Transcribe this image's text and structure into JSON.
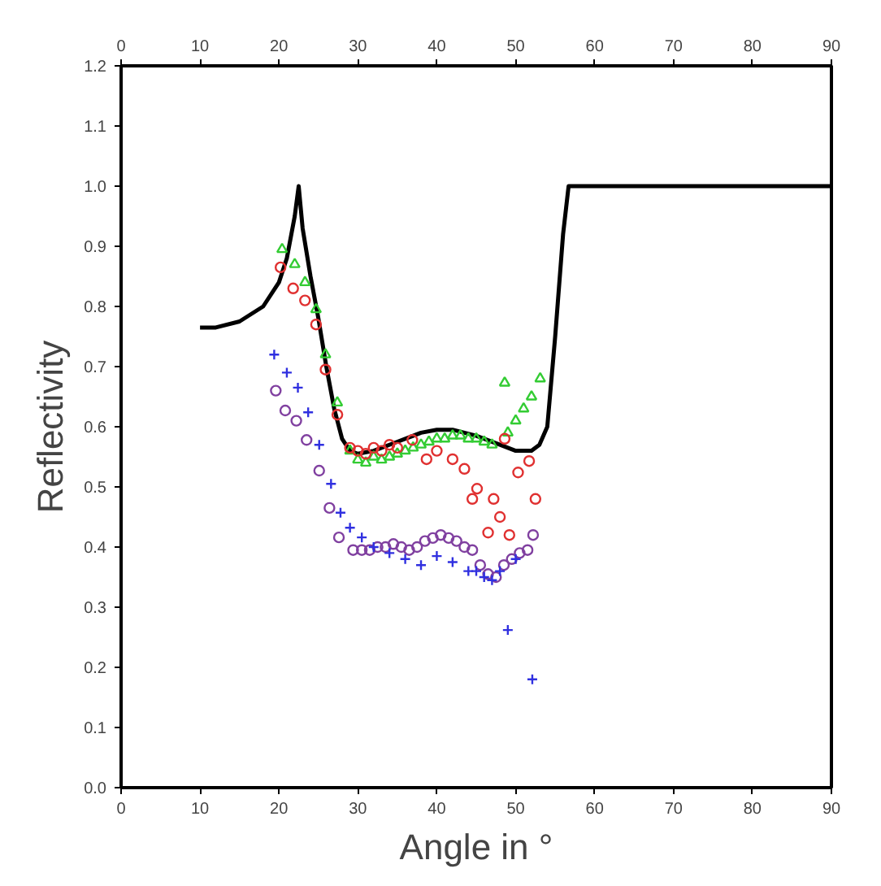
{
  "chart_data": {
    "type": "scatter",
    "xlabel": "Angle in °",
    "ylabel": "Reflectivity",
    "xlim": [
      0,
      90
    ],
    "ylim": [
      0,
      1.2
    ],
    "xticks": [
      0,
      10,
      20,
      30,
      40,
      50,
      60,
      70,
      80,
      90
    ],
    "x2lim": [
      0,
      90
    ],
    "x2ticks": [
      0,
      10,
      20,
      30,
      40,
      50,
      60,
      70,
      80,
      90
    ],
    "yticks": [
      {
        "value": 0,
        "label": "0.0"
      },
      0.1,
      0.2,
      0.3,
      0.4,
      0.5,
      0.6,
      0.7,
      0.8,
      0.9,
      {
        "value": 1,
        "label": "1.0"
      },
      1.1,
      1.2
    ],
    "grid": false,
    "series": [
      {
        "type": "line",
        "color": "#000000",
        "marker": "none",
        "line_style": "solid",
        "x": [
          10,
          12,
          15,
          18,
          20,
          21,
          22,
          22.5,
          23,
          24,
          25,
          26,
          27,
          28,
          29,
          30,
          32,
          35,
          38,
          40,
          42,
          45,
          48,
          50,
          52,
          53,
          54,
          55,
          56,
          56.7,
          90
        ],
        "values": [
          0.765,
          0.765,
          0.775,
          0.8,
          0.84,
          0.88,
          0.95,
          1.0,
          0.93,
          0.85,
          0.78,
          0.7,
          0.63,
          0.58,
          0.56,
          0.555,
          0.56,
          0.575,
          0.59,
          0.595,
          0.595,
          0.585,
          0.57,
          0.56,
          0.56,
          0.57,
          0.6,
          0.75,
          0.92,
          1.0,
          1.0
        ]
      },
      {
        "color": "#33cc33",
        "marker": "triangle",
        "x": [
          20.4,
          22.0,
          23.3,
          24.7,
          25.9,
          27.4,
          29,
          30,
          31,
          32,
          33,
          34,
          35,
          36,
          37,
          38,
          39,
          40,
          41,
          42,
          43,
          44,
          45,
          46,
          47,
          48.6,
          49,
          50,
          51,
          52,
          53.1
        ],
        "values": [
          0.895,
          0.87,
          0.84,
          0.795,
          0.72,
          0.64,
          0.56,
          0.545,
          0.54,
          0.55,
          0.545,
          0.55,
          0.555,
          0.56,
          0.565,
          0.57,
          0.575,
          0.58,
          0.58,
          0.585,
          0.585,
          0.58,
          0.58,
          0.575,
          0.57,
          0.673,
          0.59,
          0.61,
          0.63,
          0.65,
          0.68
        ]
      },
      {
        "color": "#e03030",
        "marker": "circle",
        "x": [
          20.2,
          21.8,
          23.3,
          24.7,
          25.9,
          27.4,
          29,
          30,
          31,
          32,
          33,
          34,
          35,
          36.9,
          38.7,
          40,
          42,
          43.5,
          44.5,
          45.1,
          46.5,
          47.2,
          48,
          48.6,
          49.2,
          50.3,
          51.7,
          52.5
        ],
        "values": [
          0.865,
          0.83,
          0.81,
          0.77,
          0.695,
          0.62,
          0.565,
          0.56,
          0.555,
          0.565,
          0.56,
          0.57,
          0.565,
          0.578,
          0.546,
          0.56,
          0.546,
          0.53,
          0.48,
          0.497,
          0.424,
          0.48,
          0.45,
          0.58,
          0.42,
          0.524,
          0.543,
          0.48
        ]
      },
      {
        "color": "#8040a0",
        "marker": "circle",
        "x": [
          19.6,
          20.8,
          22.2,
          23.5,
          25.1,
          26.4,
          27.6,
          29.4,
          30.5,
          31.5,
          32.5,
          33.5,
          34.5,
          35.5,
          36.5,
          37.5,
          38.5,
          39.5,
          40.5,
          41.5,
          42.5,
          43.5,
          44.5,
          45.5,
          46.5,
          47.5,
          48.5,
          49.5,
          50.5,
          51.5,
          52.2
        ],
        "values": [
          0.66,
          0.627,
          0.61,
          0.578,
          0.527,
          0.465,
          0.416,
          0.395,
          0.395,
          0.395,
          0.4,
          0.4,
          0.405,
          0.4,
          0.395,
          0.4,
          0.41,
          0.415,
          0.42,
          0.415,
          0.41,
          0.4,
          0.395,
          0.37,
          0.355,
          0.35,
          0.37,
          0.38,
          0.39,
          0.395,
          0.42
        ]
      },
      {
        "color": "#3030e0",
        "marker": "cross",
        "x": [
          19.4,
          21,
          22.4,
          23.7,
          25.1,
          26.6,
          27.8,
          29,
          30.5,
          32,
          34,
          36,
          38,
          40,
          42,
          44,
          45,
          46,
          47,
          48,
          49,
          50,
          52.1
        ],
        "values": [
          0.72,
          0.69,
          0.665,
          0.624,
          0.57,
          0.505,
          0.457,
          0.432,
          0.416,
          0.4,
          0.39,
          0.38,
          0.37,
          0.385,
          0.375,
          0.36,
          0.36,
          0.35,
          0.345,
          0.36,
          0.262,
          0.38,
          0.18
        ]
      }
    ]
  }
}
